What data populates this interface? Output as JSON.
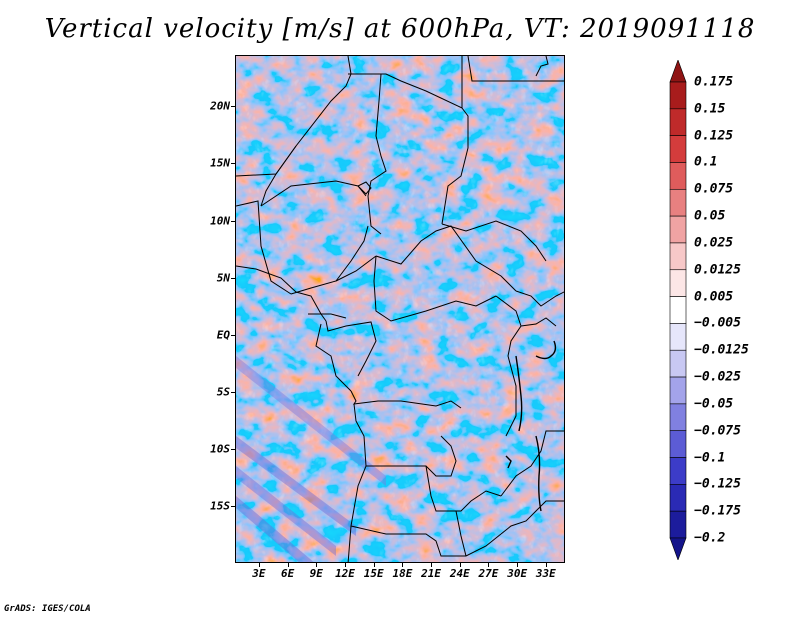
{
  "title": "Vertical velocity [m/s] at 600hPa, VT: 2019091118",
  "credit": "GrADS: IGES/COLA",
  "lat_labels": [
    "20N",
    "15N",
    "10N",
    "5N",
    "EQ",
    "5S",
    "10S",
    "15S"
  ],
  "lat_values": [
    20,
    15,
    10,
    5,
    0,
    -5,
    -10,
    -15
  ],
  "lon_labels": [
    "3E",
    "6E",
    "9E",
    "12E",
    "15E",
    "18E",
    "21E",
    "24E",
    "27E",
    "30E",
    "33E"
  ],
  "lon_values": [
    3,
    6,
    9,
    12,
    15,
    18,
    21,
    24,
    27,
    30,
    33
  ],
  "map_extent": {
    "lon_min": 0.5,
    "lon_max": 35.0,
    "lat_min": -20.0,
    "lat_max": 24.5
  },
  "colorbar": {
    "labels": [
      "0.175",
      "0.15",
      "0.125",
      "0.1",
      "0.075",
      "0.05",
      "0.025",
      "0.0125",
      "0.005",
      "−0.005",
      "−0.0125",
      "−0.025",
      "−0.05",
      "−0.075",
      "−0.1",
      "−0.125",
      "−0.175",
      "−0.2"
    ],
    "colors": [
      "#8f1414",
      "#a81c1c",
      "#bf2a2a",
      "#d43c3c",
      "#df5c5c",
      "#e88080",
      "#f0a3a3",
      "#f7c8c8",
      "#fce6e6",
      "#ffffff",
      "#e6e6fb",
      "#c8c8f3",
      "#a3a3ea",
      "#8080e0",
      "#5c5cd5",
      "#3c3cc8",
      "#2a2ab5",
      "#1c1c9c",
      "#14148a"
    ]
  },
  "colors": {
    "positive": "#d43c3c",
    "negative": "#4a4ad0",
    "border": "#000000"
  }
}
